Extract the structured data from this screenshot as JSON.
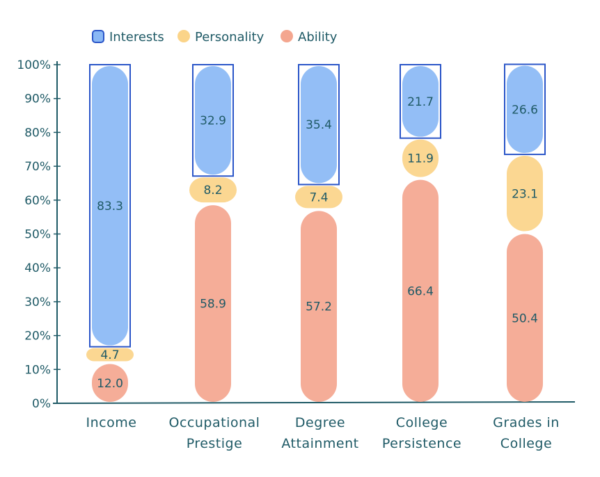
{
  "chart_data": {
    "type": "bar",
    "stacked": true,
    "categories": [
      [
        "Income"
      ],
      [
        "Occupational",
        "Prestige"
      ],
      [
        "Degree",
        "Attainment"
      ],
      [
        "College",
        "Persistence"
      ],
      [
        "Grades in",
        "College"
      ]
    ],
    "series": [
      {
        "name": "Ability",
        "color": "#f4a68f",
        "values": [
          12.0,
          58.9,
          57.2,
          66.4,
          50.4
        ],
        "labels": [
          "12.0",
          "58.9",
          "57.2",
          "66.4",
          "50.4"
        ]
      },
      {
        "name": "Personality",
        "color": "#fbd489",
        "values": [
          4.7,
          8.2,
          7.4,
          11.9,
          23.1
        ],
        "labels": [
          "4.7",
          "8.2",
          "7.4",
          "11.9",
          "23.1"
        ]
      },
      {
        "name": "Interests",
        "color": "#8ab8f5",
        "values": [
          83.3,
          32.9,
          35.4,
          21.7,
          26.6
        ],
        "labels": [
          "83.3",
          "32.9",
          "35.4",
          "21.7",
          "26.6"
        ]
      }
    ],
    "legend_order": [
      "Interests",
      "Personality",
      "Ability"
    ],
    "legend_position": "top",
    "y_ticks": [
      "0%",
      "10%",
      "20%",
      "30%",
      "40%",
      "50%",
      "60%",
      "70%",
      "80%",
      "90%",
      "100%"
    ],
    "ylim": [
      0,
      100
    ],
    "grid": false,
    "axis_color": "#1f5a66",
    "outline_color": "#2a55c8"
  }
}
